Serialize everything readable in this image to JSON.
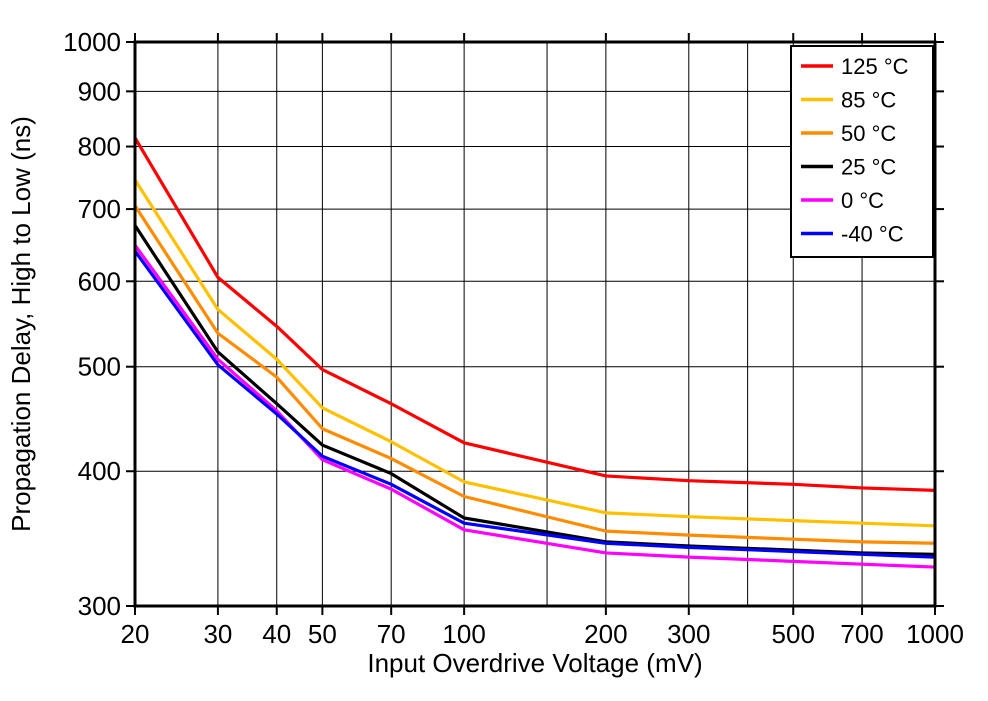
{
  "chart_data": {
    "type": "line",
    "title": "",
    "xlabel": "Input Overdrive Voltage (mV)",
    "ylabel": "Propagation Delay, High to Low (ns)",
    "xscale": "log",
    "yscale": "log",
    "xlim": [
      20,
      1000
    ],
    "ylim": [
      300,
      1000
    ],
    "grid": true,
    "legend_position": "top-right",
    "x_gridlines": [
      20,
      30,
      40,
      50,
      70,
      100,
      150,
      200,
      300,
      400,
      500,
      700,
      1000
    ],
    "x_tick_values": [
      20,
      30,
      40,
      50,
      70,
      100,
      200,
      300,
      500,
      700,
      1000
    ],
    "x_tick_labels": [
      "20",
      "30",
      "40",
      "50",
      "70",
      "100",
      "200",
      "300",
      "500",
      "700",
      "1000"
    ],
    "y_tick_values": [
      300,
      400,
      500,
      600,
      700,
      800,
      900,
      1000
    ],
    "y_tick_labels": [
      "300",
      "400",
      "500",
      "600",
      "700",
      "800",
      "900",
      "1000"
    ],
    "x": [
      20,
      30,
      40,
      50,
      70,
      100,
      200,
      300,
      500,
      700,
      1000
    ],
    "series": [
      {
        "name": "125 °C",
        "color": "#ff0000",
        "values": [
          815,
          605,
          545,
          497,
          462,
          425,
          396,
          392,
          389,
          386,
          384
        ]
      },
      {
        "name": "85 °C",
        "color": "#ffc000",
        "values": [
          745,
          565,
          508,
          458,
          426,
          391,
          366,
          363,
          360,
          358,
          356
        ]
      },
      {
        "name": "50 °C",
        "color": "#ff8c00",
        "values": [
          705,
          537,
          489,
          438,
          411,
          379,
          352,
          349,
          346,
          344,
          343
        ]
      },
      {
        "name": "25 °C",
        "color": "#000000",
        "values": [
          676,
          516,
          462,
          423,
          398,
          362,
          344,
          341,
          338,
          336,
          335
        ]
      },
      {
        "name": "0 °C",
        "color": "#ff00ff",
        "values": [
          648,
          508,
          455,
          410,
          385,
          353,
          336,
          333,
          330,
          328,
          326
        ]
      },
      {
        "name": "-40 °C",
        "color": "#0000ff",
        "values": [
          640,
          502,
          452,
          413,
          389,
          358,
          343,
          340,
          337,
          335,
          333
        ]
      }
    ]
  }
}
